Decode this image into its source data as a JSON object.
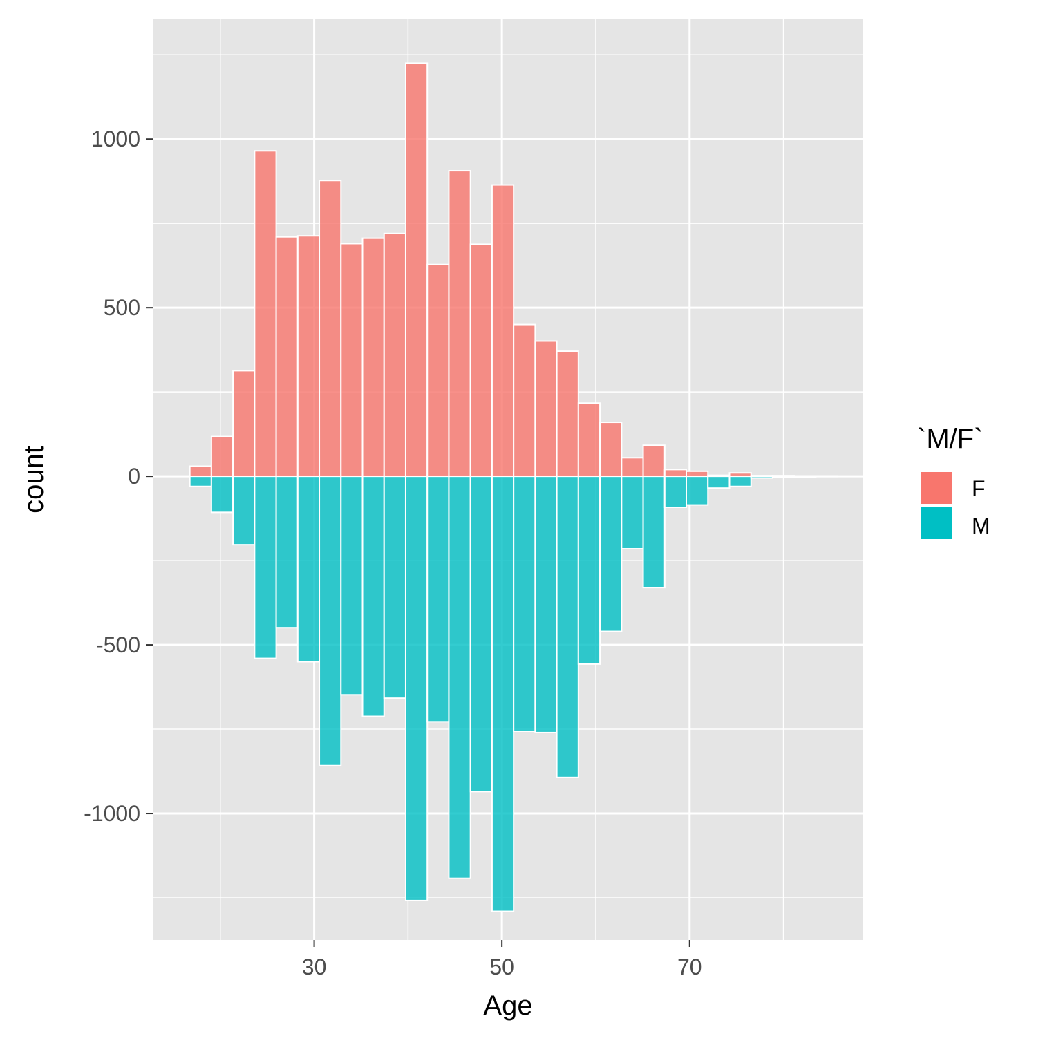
{
  "chart_data": {
    "type": "bar",
    "xlabel": "Age",
    "ylabel": "count",
    "xlim": [
      12.8,
      88.5
    ],
    "ylim": [
      -1375,
      1355
    ],
    "x_ticks": [
      30,
      50,
      70
    ],
    "x_tick_labels": [
      "30",
      "50",
      "70"
    ],
    "x_minor_ticks": [
      20,
      40,
      60,
      80
    ],
    "y_ticks": [
      -1000,
      -500,
      0,
      500,
      1000
    ],
    "y_tick_labels": [
      "-1000",
      "-500",
      "0",
      "500",
      "1000"
    ],
    "y_minor_ticks": [
      -1250,
      -750,
      -250,
      250,
      750,
      1250
    ],
    "grid": true,
    "legend": {
      "title": "`M/F`",
      "position": "right"
    },
    "bin_width": 2.3,
    "bin_centers": [
      17.9,
      20.2,
      22.5,
      24.8,
      27.1,
      29.4,
      31.7,
      34.0,
      36.3,
      38.6,
      40.9,
      43.2,
      45.5,
      47.8,
      50.1,
      52.4,
      54.7,
      57.0,
      59.3,
      61.6,
      63.9,
      66.2,
      68.5,
      70.8,
      73.1,
      75.4,
      77.7,
      80.0,
      82.3,
      84.6
    ],
    "series": [
      {
        "name": "F",
        "color": "#F8766D",
        "values": [
          30,
          118,
          313,
          965,
          710,
          713,
          877,
          690,
          706,
          720,
          1225,
          628,
          906,
          688,
          864,
          450,
          401,
          371,
          217,
          160,
          55,
          92,
          20,
          15,
          3,
          10,
          2,
          2,
          1,
          1
        ]
      },
      {
        "name": "M",
        "color": "#00BFC4",
        "values": [
          -30,
          -107,
          -203,
          -540,
          -449,
          -550,
          -858,
          -648,
          -712,
          -658,
          -1258,
          -728,
          -1192,
          -935,
          -1290,
          -756,
          -760,
          -893,
          -557,
          -460,
          -215,
          -330,
          -92,
          -85,
          -35,
          -30,
          -5,
          -3,
          -2,
          -1
        ]
      }
    ]
  },
  "colors": {
    "panel_bg": "#E5E5E5",
    "grid_major": "#FFFFFF",
    "bar_outline": "#FFFFFF",
    "tick_text": "#4D4D4D"
  }
}
